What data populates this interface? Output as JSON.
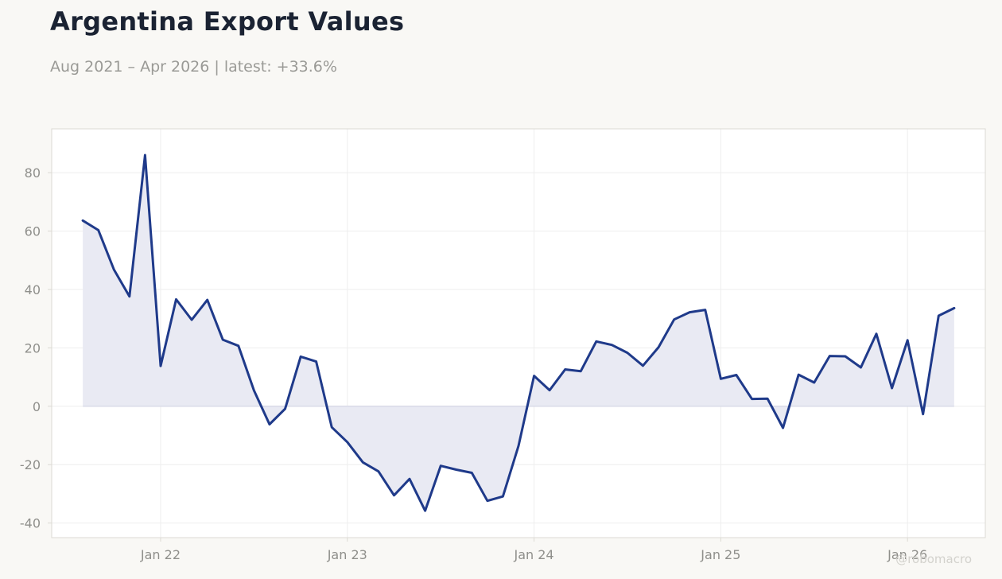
{
  "header": {
    "title": "Argentina Export Values",
    "subtitle": "Aug 2021 – Apr 2026 | latest: +33.6%"
  },
  "watermark": "@robomacro",
  "colors": {
    "background": "#f9f8f5",
    "plot_background": "#ffffff",
    "line": "#1f3a8a",
    "fill": "#e9eaf3",
    "grid": "#eeeeee",
    "frame": "#dcdad4",
    "tick_text": "#8f8f8b"
  },
  "chart_data": {
    "type": "area",
    "x_type": "monthly",
    "start": "2021-08",
    "end": "2026-04",
    "xlim": [
      "2021-06",
      "2026-06"
    ],
    "ylim": [
      -45,
      95
    ],
    "y_ticks": [
      -40,
      -20,
      0,
      20,
      40,
      60,
      80
    ],
    "x_ticks": [
      {
        "date": "2022-01",
        "label": "Jan 22"
      },
      {
        "date": "2023-01",
        "label": "Jan 23"
      },
      {
        "date": "2024-01",
        "label": "Jan 24"
      },
      {
        "date": "2025-01",
        "label": "Jan 25"
      },
      {
        "date": "2026-01",
        "label": "Jan 26"
      }
    ],
    "grid": true,
    "series": [
      {
        "values": [
          63.6,
          60.3,
          46.8,
          37.6,
          86.0,
          13.8,
          36.6,
          29.6,
          36.4,
          22.8,
          20.7,
          5.4,
          -6.2,
          -0.9,
          17.0,
          15.3,
          -7.2,
          -12.3,
          -19.2,
          -22.3,
          -30.5,
          -24.9,
          -35.8,
          -20.4,
          -21.7,
          -22.8,
          -32.4,
          -30.9,
          -13.6,
          10.4,
          5.5,
          12.6,
          12.0,
          22.2,
          21.0,
          18.3,
          13.9,
          20.2,
          29.7,
          32.2,
          33.0,
          9.4,
          10.7,
          2.5,
          2.6,
          -7.4,
          10.8,
          8.1,
          17.2,
          17.1,
          13.3,
          24.8,
          6.2,
          22.6,
          -2.7,
          31.0,
          33.6
        ]
      }
    ]
  }
}
